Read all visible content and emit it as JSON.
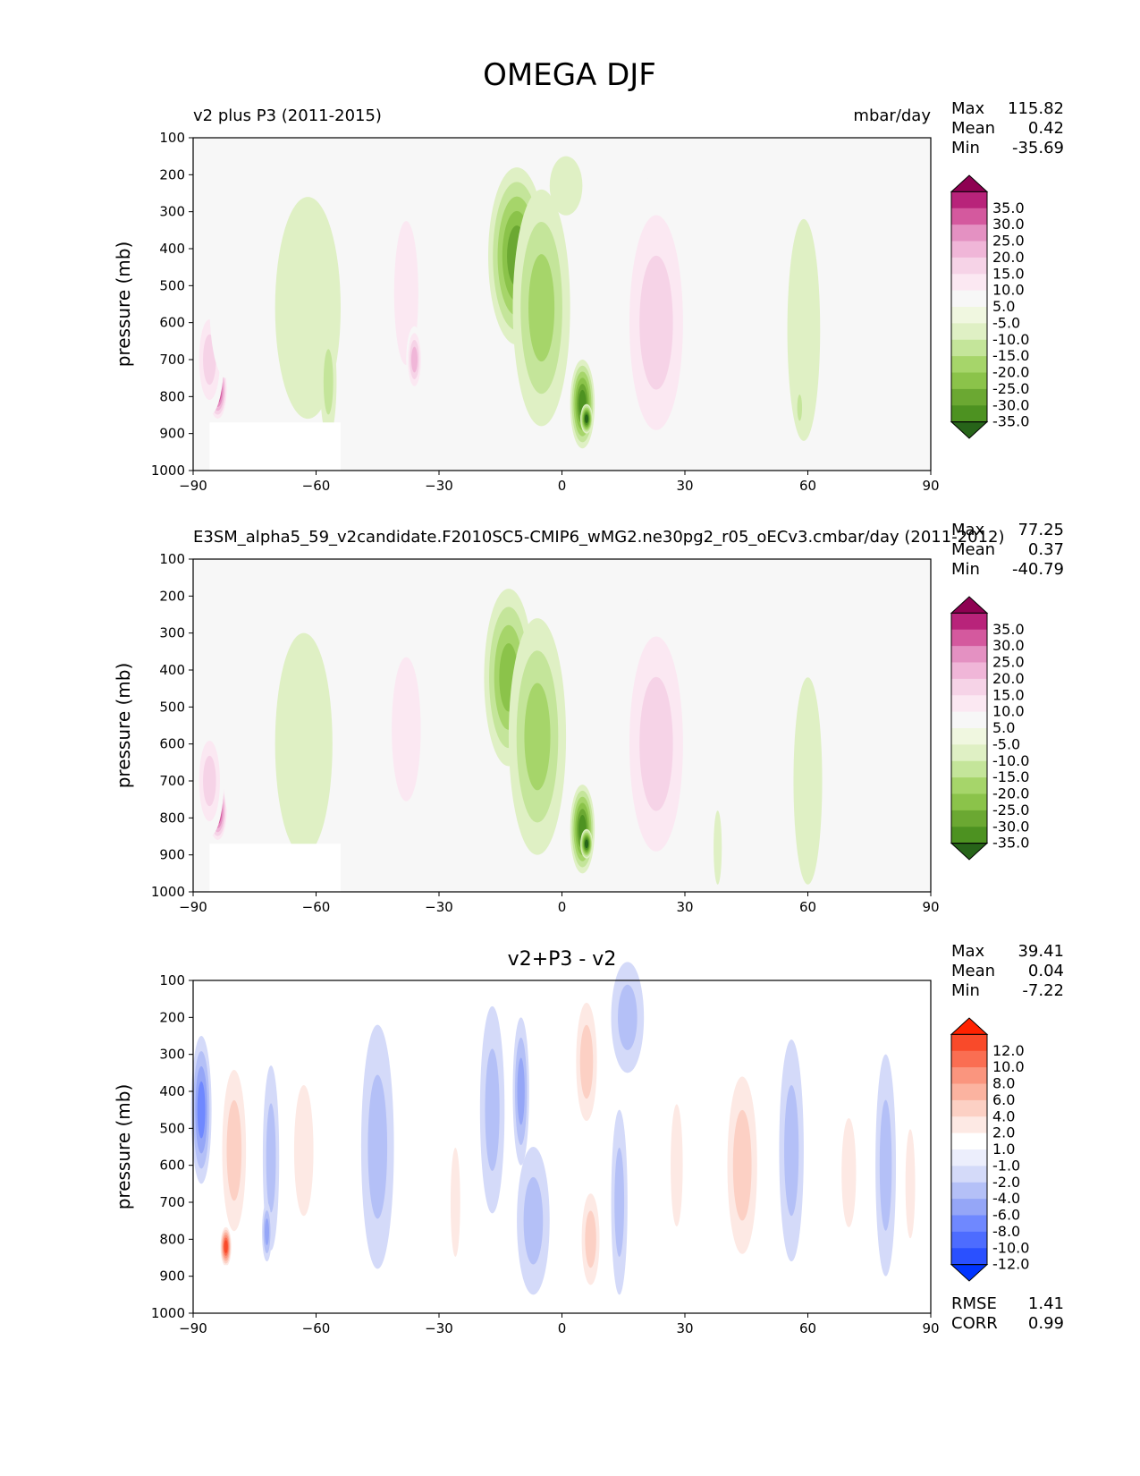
{
  "figure": {
    "title": "OMEGA DJF"
  },
  "colors": {
    "background": "#f7f7f7",
    "omega_levels": [
      -35,
      -30,
      -25,
      -20,
      -15,
      -10,
      -5,
      5,
      10,
      15,
      20,
      25,
      30,
      35
    ],
    "omega_colors": [
      "#276419",
      "#4d9221",
      "#6ba832",
      "#8bc34a",
      "#a6d56a",
      "#c4e59a",
      "#dff0c4",
      "#f0f7e0",
      "#f7f7f7",
      "#fbe8f2",
      "#f6d3e7",
      "#f0b6d8",
      "#e491c2",
      "#d4599e",
      "#b8237a",
      "#8e0152"
    ],
    "diff_levels": [
      -12,
      -10,
      -8,
      -6,
      -4,
      -2,
      -1,
      1,
      2,
      4,
      6,
      8,
      10,
      12
    ],
    "diff_colors": [
      "#0034ff",
      "#2a50ff",
      "#4d6cff",
      "#6f88ff",
      "#95a6f7",
      "#b4c0f7",
      "#d4daf9",
      "#eceefc",
      "#ffffff",
      "#fde9e4",
      "#fcd0c4",
      "#fbb3a0",
      "#fa957e",
      "#fa6e52",
      "#f94a2a",
      "#ff2200"
    ]
  },
  "chart_data": [
    {
      "type": "heatmap",
      "title": "v2 plus P3 (2011-2015)",
      "units": "mbar/day",
      "xlabel": "",
      "ylabel": "pressure (mb)",
      "xlim": [
        -90,
        90
      ],
      "ylim": [
        1000,
        100
      ],
      "x_ticks": [
        "−90",
        "−60",
        "−30",
        "0",
        "30",
        "60",
        "90"
      ],
      "y_ticks": [
        "100",
        "200",
        "300",
        "400",
        "500",
        "600",
        "700",
        "800",
        "900",
        "1000"
      ],
      "stats": [
        {
          "label": "Max",
          "value": "115.82"
        },
        {
          "label": "Mean",
          "value": "0.42"
        },
        {
          "label": "Min",
          "value": "-35.69"
        }
      ],
      "colorbar_labels": [
        "35.0",
        "30.0",
        "25.0",
        "20.0",
        "15.0",
        "10.0",
        "5.0",
        "-5.0",
        "-10.0",
        "-15.0",
        "-20.0",
        "-25.0",
        "-30.0",
        "-35.0"
      ],
      "features": [
        {
          "lat": -84,
          "pres": 780,
          "value": 40,
          "dlat": 2.5,
          "dp": 90
        },
        {
          "lat": -86,
          "pres": 700,
          "value": 18,
          "dlat": 3.5,
          "dp": 150
        },
        {
          "lat": -82,
          "pres": 550,
          "value": 6,
          "dlat": 4,
          "dp": 200
        },
        {
          "lat": -62,
          "pres": 560,
          "value": -7,
          "dlat": 8,
          "dp": 300
        },
        {
          "lat": -57,
          "pres": 760,
          "value": -10,
          "dlat": 2,
          "dp": 150
        },
        {
          "lat": -38,
          "pres": 520,
          "value": 12,
          "dlat": 5,
          "dp": 330
        },
        {
          "lat": -36,
          "pres": 700,
          "value": 20,
          "dlat": 2,
          "dp": 90
        },
        {
          "lat": -11,
          "pres": 420,
          "value": -25,
          "dlat": 7,
          "dp": 240
        },
        {
          "lat": -5,
          "pres": 560,
          "value": -17,
          "dlat": 7,
          "dp": 320
        },
        {
          "lat": 5,
          "pres": 820,
          "value": -30,
          "dlat": 3,
          "dp": 120
        },
        {
          "lat": 6,
          "pres": 860,
          "value": -35,
          "dlat": 1.5,
          "dp": 40
        },
        {
          "lat": 1,
          "pres": 230,
          "value": -8,
          "dlat": 4,
          "dp": 80
        },
        {
          "lat": 23,
          "pres": 480,
          "value": 25,
          "dlat": 7,
          "dp": 320
        },
        {
          "lat": 23,
          "pres": 600,
          "value": 18,
          "dlat": 9,
          "dp": 400
        },
        {
          "lat": 59,
          "pres": 620,
          "value": -7,
          "dlat": 4,
          "dp": 300
        },
        {
          "lat": 58,
          "pres": 830,
          "value": -12,
          "dlat": 1,
          "dp": 60
        },
        {
          "lat": 81,
          "pres": 750,
          "value": 7,
          "dlat": 2,
          "dp": 150
        },
        {
          "lat": 70,
          "pres": 830,
          "value": 7,
          "dlat": 0.8,
          "dp": 60
        },
        {
          "lat": 41,
          "pres": 800,
          "value": 6,
          "dlat": 1.2,
          "dp": 120
        }
      ]
    },
    {
      "type": "heatmap",
      "title": "E3SM_alpha5_59_v2candidate.F2010SC5-CMIP6_wMG2.ne30pg2_r05_oECv3.cmbar/day (2011-2012)",
      "units": "",
      "xlabel": "",
      "ylabel": "pressure (mb)",
      "xlim": [
        -90,
        90
      ],
      "ylim": [
        1000,
        100
      ],
      "x_ticks": [
        "−90",
        "−60",
        "−30",
        "0",
        "30",
        "60",
        "90"
      ],
      "y_ticks": [
        "100",
        "200",
        "300",
        "400",
        "500",
        "600",
        "700",
        "800",
        "900",
        "1000"
      ],
      "stats": [
        {
          "label": "Max",
          "value": "77.25"
        },
        {
          "label": "Mean",
          "value": "0.37"
        },
        {
          "label": "Min",
          "value": "-40.79"
        }
      ],
      "colorbar_labels": [
        "35.0",
        "30.0",
        "25.0",
        "20.0",
        "15.0",
        "10.0",
        "5.0",
        "-5.0",
        "-10.0",
        "-15.0",
        "-20.0",
        "-25.0",
        "-30.0",
        "-35.0"
      ],
      "features": [
        {
          "lat": -84,
          "pres": 780,
          "value": 40,
          "dlat": 2.5,
          "dp": 90
        },
        {
          "lat": -86,
          "pres": 700,
          "value": 18,
          "dlat": 3.5,
          "dp": 150
        },
        {
          "lat": -80,
          "pres": 600,
          "value": 7,
          "dlat": 3,
          "dp": 220
        },
        {
          "lat": -63,
          "pres": 600,
          "value": -9,
          "dlat": 7,
          "dp": 300
        },
        {
          "lat": -38,
          "pres": 560,
          "value": 12,
          "dlat": 6,
          "dp": 330
        },
        {
          "lat": -13,
          "pres": 420,
          "value": -24,
          "dlat": 6,
          "dp": 240
        },
        {
          "lat": -6,
          "pres": 580,
          "value": -17,
          "dlat": 7,
          "dp": 320
        },
        {
          "lat": 5,
          "pres": 830,
          "value": -30,
          "dlat": 3,
          "dp": 120
        },
        {
          "lat": 6,
          "pres": 870,
          "value": -35,
          "dlat": 1.5,
          "dp": 40
        },
        {
          "lat": 23,
          "pres": 500,
          "value": 25,
          "dlat": 7,
          "dp": 330
        },
        {
          "lat": 23,
          "pres": 600,
          "value": 18,
          "dlat": 9,
          "dp": 400
        },
        {
          "lat": 60,
          "pres": 700,
          "value": -7,
          "dlat": 3.5,
          "dp": 280
        },
        {
          "lat": 79,
          "pres": 700,
          "value": 7,
          "dlat": 3,
          "dp": 260
        },
        {
          "lat": 38,
          "pres": 880,
          "value": -7,
          "dlat": 1,
          "dp": 100
        }
      ]
    },
    {
      "type": "heatmap",
      "title": "v2+P3 - v2",
      "units": "",
      "xlabel": "",
      "ylabel": "pressure (mb)",
      "xlim": [
        -90,
        90
      ],
      "ylim": [
        1000,
        100
      ],
      "x_ticks": [
        "−90",
        "−60",
        "−30",
        "0",
        "30",
        "60",
        "90"
      ],
      "y_ticks": [
        "100",
        "200",
        "300",
        "400",
        "500",
        "600",
        "700",
        "800",
        "900",
        "1000"
      ],
      "stats": [
        {
          "label": "Max",
          "value": "39.41"
        },
        {
          "label": "Mean",
          "value": "0.04"
        },
        {
          "label": "Min",
          "value": "-7.22"
        }
      ],
      "extra_stats": [
        {
          "label": "RMSE",
          "value": "1.41"
        },
        {
          "label": "CORR",
          "value": "0.99"
        }
      ],
      "colorbar_labels": [
        "12.0",
        "10.0",
        "8.0",
        "6.0",
        "4.0",
        "2.0",
        "1.0",
        "-1.0",
        "-2.0",
        "-4.0",
        "-6.0",
        "-8.0",
        "-10.0",
        "-12.0"
      ],
      "features": [
        {
          "lat": -88,
          "pres": 450,
          "value": -6,
          "dlat": 2.5,
          "dp": 200
        },
        {
          "lat": -80,
          "pres": 560,
          "value": 4,
          "dlat": 4,
          "dp": 300
        },
        {
          "lat": -82,
          "pres": 820,
          "value": 12,
          "dlat": 1.5,
          "dp": 60
        },
        {
          "lat": -71,
          "pres": 580,
          "value": -2.5,
          "dlat": 2,
          "dp": 250
        },
        {
          "lat": -72,
          "pres": 780,
          "value": -5,
          "dlat": 1.2,
          "dp": 80
        },
        {
          "lat": -63,
          "pres": 560,
          "value": 3,
          "dlat": 4,
          "dp": 300
        },
        {
          "lat": -45,
          "pres": 550,
          "value": -3.5,
          "dlat": 4,
          "dp": 330
        },
        {
          "lat": -26,
          "pres": 700,
          "value": 2,
          "dlat": 2,
          "dp": 250
        },
        {
          "lat": -17,
          "pres": 450,
          "value": -3,
          "dlat": 3,
          "dp": 280
        },
        {
          "lat": -10,
          "pres": 400,
          "value": -5,
          "dlat": 2,
          "dp": 200
        },
        {
          "lat": -7,
          "pres": 750,
          "value": -3,
          "dlat": 4,
          "dp": 200
        },
        {
          "lat": 6,
          "pres": 320,
          "value": 4,
          "dlat": 3.5,
          "dp": 220
        },
        {
          "lat": 7,
          "pres": 800,
          "value": 5,
          "dlat": 3,
          "dp": 170
        },
        {
          "lat": 14,
          "pres": 700,
          "value": -3,
          "dlat": 2,
          "dp": 250
        },
        {
          "lat": 28,
          "pres": 600,
          "value": 3,
          "dlat": 2.5,
          "dp": 280
        },
        {
          "lat": 44,
          "pres": 600,
          "value": 4,
          "dlat": 5,
          "dp": 330
        },
        {
          "lat": 56,
          "pres": 560,
          "value": -3,
          "dlat": 3,
          "dp": 300
        },
        {
          "lat": 70,
          "pres": 620,
          "value": 2,
          "dlat": 3,
          "dp": 250
        },
        {
          "lat": 79,
          "pres": 600,
          "value": -3,
          "dlat": 2.5,
          "dp": 300
        },
        {
          "lat": 85,
          "pres": 650,
          "value": 3,
          "dlat": 2,
          "dp": 250
        },
        {
          "lat": 16,
          "pres": 200,
          "value": -2,
          "dlat": 4,
          "dp": 150
        }
      ]
    }
  ]
}
